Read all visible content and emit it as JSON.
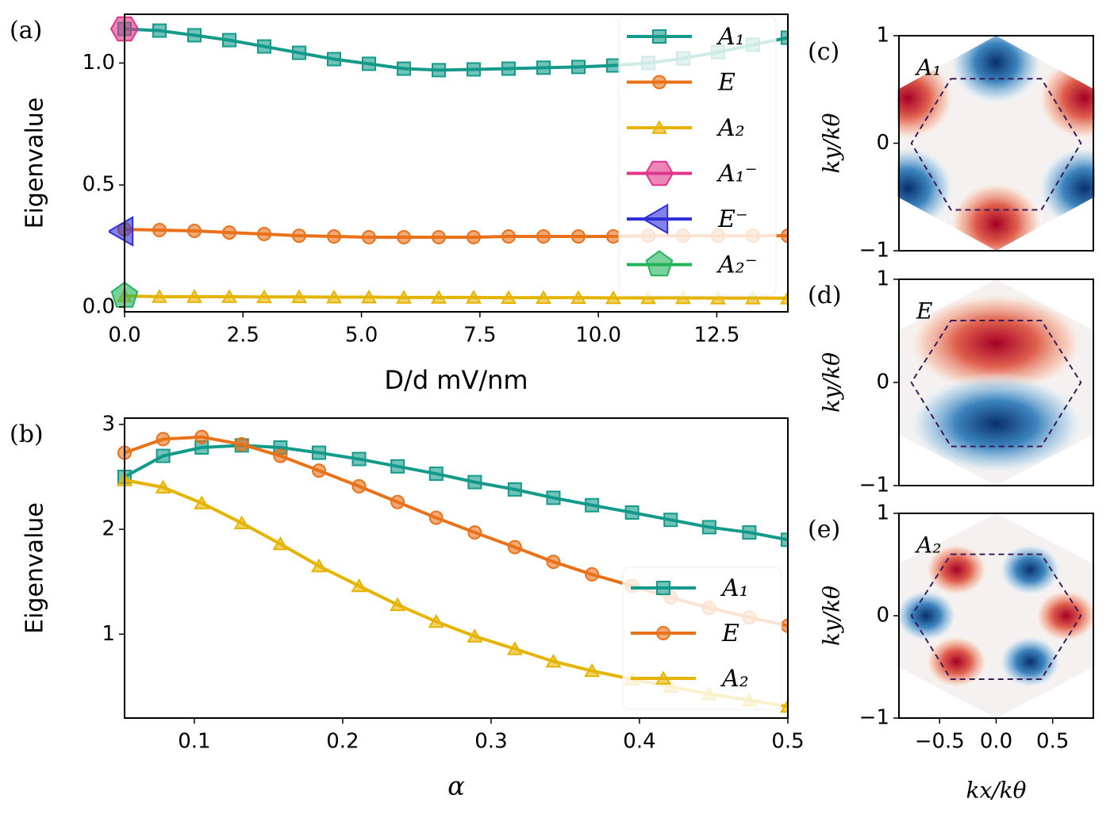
{
  "chart_data": [
    {
      "type": "line",
      "panel_label": "(a)",
      "xlabel": "D/d mV/nm",
      "ylabel": "Eigenvalue",
      "x": [
        0,
        0.737,
        1.474,
        2.211,
        2.947,
        3.684,
        4.421,
        5.158,
        5.895,
        6.632,
        7.368,
        8.105,
        8.842,
        9.579,
        10.316,
        11.053,
        11.789,
        12.526,
        13.263,
        14.0
      ],
      "xlim": [
        0,
        14
      ],
      "xticks": [
        {
          "value": 0,
          "label": "0.0"
        },
        {
          "value": 2.5,
          "label": "2.5"
        },
        {
          "value": 5,
          "label": "5.0"
        },
        {
          "value": 7.5,
          "label": "7.5"
        },
        {
          "value": 10,
          "label": "10.0"
        },
        {
          "value": 12.5,
          "label": "12.5"
        }
      ],
      "ylim": [
        -0.02,
        1.2
      ],
      "yticks": [
        {
          "value": 0,
          "label": "0.0"
        },
        {
          "value": 0.5,
          "label": "0.5"
        },
        {
          "value": 1,
          "label": "1.0"
        }
      ],
      "legend": "upper right",
      "series": [
        {
          "name": "A₁",
          "color": "#139a8a",
          "values": [
            1.14,
            1.133,
            1.114,
            1.094,
            1.068,
            1.042,
            1.016,
            0.997,
            0.977,
            0.971,
            0.974,
            0.977,
            0.981,
            0.984,
            0.99,
            1.0,
            1.019,
            1.045,
            1.075,
            1.104
          ]
        },
        {
          "name": "E",
          "color": "#e8711a",
          "values": [
            0.318,
            0.315,
            0.312,
            0.305,
            0.299,
            0.292,
            0.289,
            0.286,
            0.286,
            0.286,
            0.286,
            0.289,
            0.289,
            0.289,
            0.289,
            0.292,
            0.292,
            0.292,
            0.292,
            0.292
          ]
        },
        {
          "name": "A₂",
          "color": "#e6b400",
          "values": [
            0.045,
            0.042,
            0.042,
            0.042,
            0.041,
            0.041,
            0.04,
            0.04,
            0.039,
            0.039,
            0.039,
            0.038,
            0.038,
            0.038,
            0.037,
            0.037,
            0.037,
            0.036,
            0.036,
            0.036
          ]
        },
        {
          "name": "A₁⁻",
          "color": "#e0358a",
          "values": [
            1.14,
            null,
            null,
            null,
            null,
            null,
            null,
            null,
            null,
            null,
            null,
            null,
            null,
            null,
            null,
            null,
            null,
            null,
            null,
            null
          ]
        },
        {
          "name": "E⁻",
          "color": "#2f2fd8",
          "values": [
            0.31,
            null,
            null,
            null,
            null,
            null,
            null,
            null,
            null,
            null,
            null,
            null,
            null,
            null,
            null,
            null,
            null,
            null,
            null,
            null
          ]
        },
        {
          "name": "A₂⁻",
          "color": "#22b35a",
          "values": [
            0.045,
            null,
            null,
            null,
            null,
            null,
            null,
            null,
            null,
            null,
            null,
            null,
            null,
            null,
            null,
            null,
            null,
            null,
            null,
            null
          ]
        }
      ]
    },
    {
      "type": "line",
      "panel_label": "(b)",
      "xlabel": "α",
      "ylabel": "Eigenvalue",
      "x": [
        0.053,
        0.079,
        0.105,
        0.132,
        0.158,
        0.184,
        0.211,
        0.237,
        0.263,
        0.289,
        0.316,
        0.342,
        0.368,
        0.395,
        0.421,
        0.447,
        0.474,
        0.5
      ],
      "xlim": [
        0.053,
        0.5
      ],
      "xticks": [
        0.1,
        0.2,
        0.3,
        0.4,
        0.5
      ],
      "ylim": [
        0.2,
        3.06
      ],
      "yticks": [
        1,
        2,
        3
      ],
      "legend": "lower right",
      "series": [
        {
          "name": "A₁",
          "color": "#139a8a",
          "values": [
            2.5,
            2.7,
            2.78,
            2.8,
            2.78,
            2.73,
            2.67,
            2.6,
            2.53,
            2.45,
            2.38,
            2.3,
            2.23,
            2.16,
            2.09,
            2.02,
            1.97,
            1.9
          ]
        },
        {
          "name": "E",
          "color": "#e8711a",
          "values": [
            2.73,
            2.86,
            2.88,
            2.81,
            2.7,
            2.56,
            2.41,
            2.26,
            2.11,
            1.97,
            1.83,
            1.69,
            1.57,
            1.46,
            1.35,
            1.25,
            1.16,
            1.08
          ]
        },
        {
          "name": "A₂",
          "color": "#e6b400",
          "values": [
            2.47,
            2.4,
            2.25,
            2.06,
            1.86,
            1.65,
            1.46,
            1.28,
            1.12,
            0.98,
            0.86,
            0.74,
            0.65,
            0.57,
            0.5,
            0.43,
            0.37,
            0.31
          ]
        }
      ]
    },
    {
      "type": "heatmap",
      "panel_label": "(c)",
      "label": "A₁",
      "ylabel": "ky/kθ",
      "xlim": [
        -0.86,
        0.86
      ],
      "ylim": [
        -1,
        1
      ],
      "yticks": [
        {
          "value": -1,
          "label": "−1"
        },
        0,
        1
      ]
    },
    {
      "type": "heatmap",
      "panel_label": "(d)",
      "label": "E",
      "ylabel": "ky/kθ",
      "xlim": [
        -0.86,
        0.86
      ],
      "ylim": [
        -1,
        1
      ],
      "yticks": [
        {
          "value": -1,
          "label": "−1"
        },
        0,
        1
      ]
    },
    {
      "type": "heatmap",
      "panel_label": "(e)",
      "label": "A₂",
      "ylabel": "ky/kθ",
      "xlabel": "kx/kθ",
      "xlim": [
        -0.86,
        0.86
      ],
      "ylim": [
        -1,
        1
      ],
      "yticks": [
        {
          "value": -1,
          "label": "−1"
        },
        0,
        1
      ],
      "xticks": [
        {
          "value": -0.5,
          "label": "−0.5"
        },
        {
          "value": 0,
          "label": "0.0"
        },
        {
          "value": 0.5,
          "label": "0.5"
        }
      ]
    }
  ]
}
